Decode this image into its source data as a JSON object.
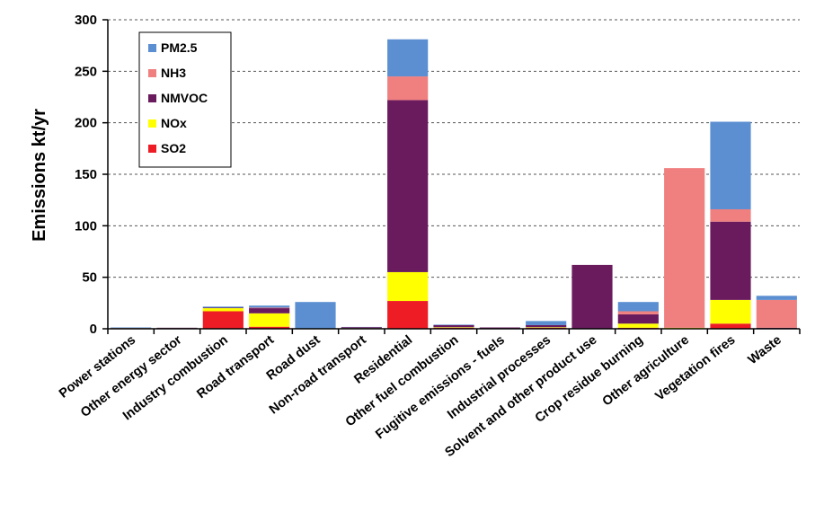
{
  "chart_data": {
    "type": "bar",
    "stacked": true,
    "ylabel": "Emissions kt/yr",
    "xlabel": "",
    "ylim": [
      0,
      300
    ],
    "yticks": [
      0,
      50,
      100,
      150,
      200,
      250,
      300
    ],
    "grid": "horizontal dashed",
    "legend_position": "top-left",
    "categories": [
      "Power stations",
      "Other energy sector",
      "Industry combustion",
      "Road transport",
      "Road dust",
      "Non-road transport",
      "Residential",
      "Other fuel combustion",
      "Fugitive emissions - fuels",
      "Industrial processes",
      "Solvent and other product use",
      "Crop residue burning",
      "Other agriculture",
      "Vegetation fires",
      "Waste"
    ],
    "series": [
      {
        "name": "SO2",
        "color": "#ee1c25",
        "values": [
          0.3,
          0.3,
          17,
          2,
          0,
          0.3,
          27,
          1,
          0.3,
          1,
          0,
          1,
          0,
          5,
          0
        ]
      },
      {
        "name": "NOx",
        "color": "#ffff00",
        "values": [
          0.3,
          0.2,
          3,
          13,
          0,
          0.3,
          28,
          0.5,
          0,
          0.5,
          0,
          4,
          1,
          23,
          0
        ]
      },
      {
        "name": "NMVOC",
        "color": "#6a1b5e",
        "values": [
          0.2,
          0.5,
          0.5,
          5,
          0,
          1,
          167,
          2,
          1,
          2,
          62,
          9,
          0,
          76,
          1
        ]
      },
      {
        "name": "NH3",
        "color": "#f08080",
        "values": [
          0,
          0,
          0,
          0.5,
          0,
          0,
          23,
          0,
          0,
          0,
          0,
          3,
          155,
          12,
          27
        ]
      },
      {
        "name": "PM2.5",
        "color": "#5b8fd1",
        "values": [
          0.5,
          0,
          1,
          2,
          26,
          0.2,
          36,
          0.5,
          0,
          4,
          0,
          9,
          0,
          85,
          4
        ]
      }
    ],
    "legend_order": [
      "PM2.5",
      "NH3",
      "NMVOC",
      "NOx",
      "SO2"
    ]
  }
}
